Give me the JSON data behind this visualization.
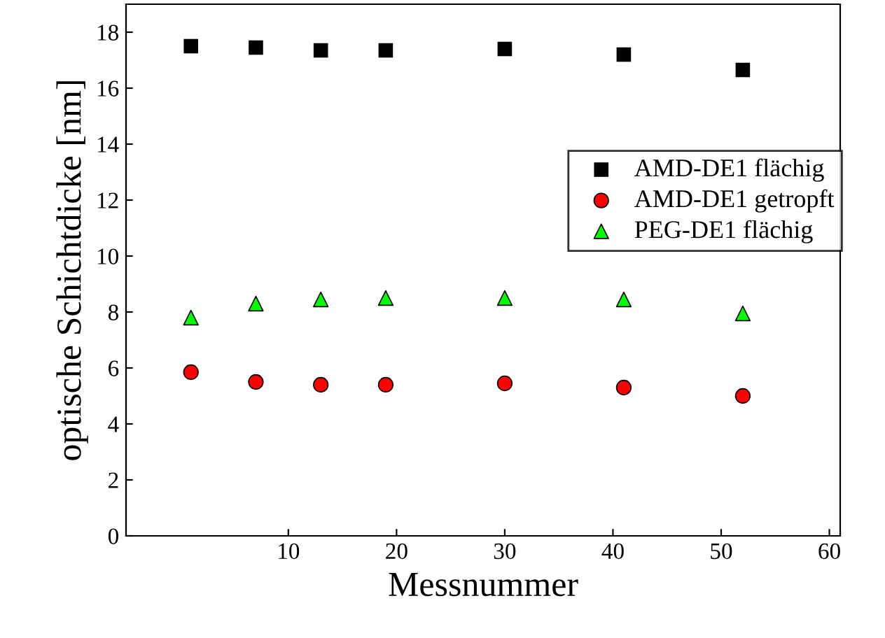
{
  "chart_data": {
    "type": "scatter",
    "xlabel": "Messnummer",
    "ylabel": "optische Schichtdicke [nm]",
    "x": [
      1,
      7,
      13,
      19,
      30,
      41,
      52
    ],
    "series": [
      {
        "name": "AMD-DE1 flächig",
        "color": "#000000",
        "marker": "square",
        "values": [
          17.5,
          17.45,
          17.35,
          17.35,
          17.4,
          17.2,
          16.65
        ]
      },
      {
        "name": "AMD-DE1 getropft",
        "color": "#ff0000",
        "marker": "circle",
        "values": [
          5.85,
          5.5,
          5.4,
          5.4,
          5.45,
          5.3,
          5.0
        ]
      },
      {
        "name": "PEG-DE1 flächig",
        "color": "#00ff00",
        "marker": "triangle",
        "values": [
          7.8,
          8.3,
          8.45,
          8.5,
          8.5,
          8.45,
          7.95
        ]
      }
    ],
    "xlim": [
      -5,
      61
    ],
    "xticks": [
      10,
      20,
      30,
      40,
      50,
      60
    ],
    "ylim": [
      0,
      19
    ],
    "yticks": [
      0,
      2,
      4,
      6,
      8,
      10,
      12,
      14,
      16,
      18
    ],
    "grid": false,
    "legend": "right"
  }
}
